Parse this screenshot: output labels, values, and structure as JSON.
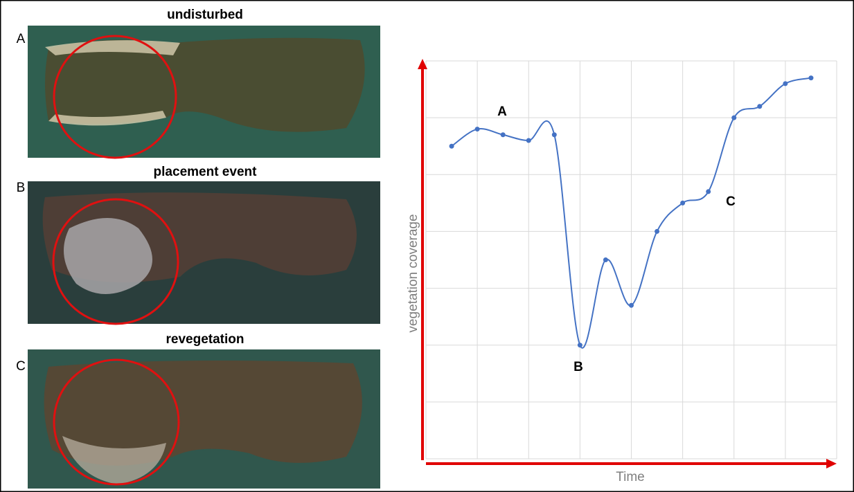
{
  "panels": [
    {
      "letter": "A",
      "title": "undisturbed"
    },
    {
      "letter": "B",
      "title": "placement event"
    },
    {
      "letter": "C",
      "title": "revegetation"
    }
  ],
  "chart_data": {
    "type": "line",
    "x_label": "Time",
    "y_label": "vegetation coverage",
    "x": [
      0.5,
      1,
      1.5,
      2,
      2.5,
      3,
      3.5,
      4,
      4.5,
      5,
      5.5,
      6,
      6.5,
      7,
      7.5
    ],
    "series": [
      {
        "color": "#4472c4",
        "values": [
          5.5,
          5.8,
          5.7,
          5.6,
          5.7,
          2.0,
          3.5,
          2.7,
          4.0,
          4.5,
          4.7,
          6.0,
          6.2,
          6.6,
          6.7
        ]
      }
    ],
    "annotations": [
      "A",
      "B",
      "C"
    ],
    "xlim": [
      0,
      8
    ],
    "ylim": [
      0,
      7
    ],
    "xticks": [
      0,
      1,
      2,
      3,
      4,
      5,
      6,
      7,
      8
    ],
    "yticks": [
      0,
      1,
      2,
      3,
      4,
      5,
      6,
      7
    ],
    "grid": true,
    "axis_color": "#e00000"
  }
}
